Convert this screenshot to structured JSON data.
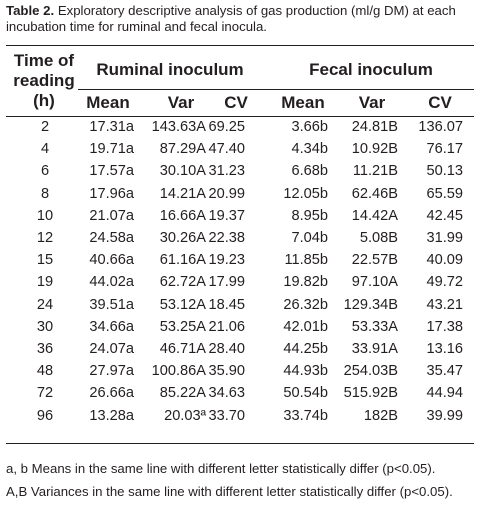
{
  "caption": {
    "label": "Table 2.",
    "text": "Exploratory descriptive analysis of gas production (ml/g DM) at each incubation time for ruminal and fecal inocula."
  },
  "table": {
    "row_header": [
      "Time of",
      "reading",
      "(h)"
    ],
    "groups": [
      "Ruminal inoculum",
      "Fecal inoculum"
    ],
    "columns": [
      "Mean",
      "Var",
      "CV",
      "Mean",
      "Var",
      "CV"
    ],
    "rows": [
      [
        "2",
        "17.31a",
        "143.63A",
        "69.25",
        "3.66b",
        "24.81B",
        "136.07"
      ],
      [
        "4",
        "19.71a",
        "87.29A",
        "47.40",
        "4.34b",
        "10.92B",
        "76.17"
      ],
      [
        "6",
        "17.57a",
        "30.10A",
        "31.23",
        "6.68b",
        "11.21B",
        "50.13"
      ],
      [
        "8",
        "17.96a",
        "14.21A",
        "20.99",
        "12.05b",
        "62.46B",
        "65.59"
      ],
      [
        "10",
        "21.07a",
        "16.66A",
        "19.37",
        "8.95b",
        "14.42A",
        "42.45"
      ],
      [
        "12",
        "24.58a",
        "30.26A",
        "22.38",
        "7.04b",
        "5.08B",
        "31.99"
      ],
      [
        "15",
        "40.66a",
        "61.16A",
        "19.23",
        "11.85b",
        "22.57B",
        "40.09"
      ],
      [
        "19",
        "44.02a",
        "62.72A",
        "17.99",
        "19.82b",
        "97.10A",
        "49.72"
      ],
      [
        "24",
        "39.51a",
        "53.12A",
        "18.45",
        "26.32b",
        "129.34B",
        "43.21"
      ],
      [
        "30",
        "34.66a",
        "53.25A",
        "21.06",
        "42.01b",
        "53.33A",
        "17.38"
      ],
      [
        "36",
        "24.07a",
        "46.71A",
        "28.40",
        "44.25b",
        "33.91A",
        "13.16"
      ],
      [
        "48",
        "27.97a",
        "100.86A",
        "35.90",
        "44.93b",
        "254.03B",
        "35.47"
      ],
      [
        "72",
        "26.66a",
        "85.22A",
        "34.63",
        "50.54b",
        "515.92B",
        "44.94"
      ],
      [
        "96",
        "13.28a",
        "20.03ª",
        "33.70",
        "33.74b",
        "182B",
        "39.99"
      ]
    ]
  },
  "footnotes": [
    "a, b Means in the same line with different letter statistically differ (p<0.05).",
    "A,B Variances in the same line with different letter statistically differ (p<0.05)."
  ]
}
